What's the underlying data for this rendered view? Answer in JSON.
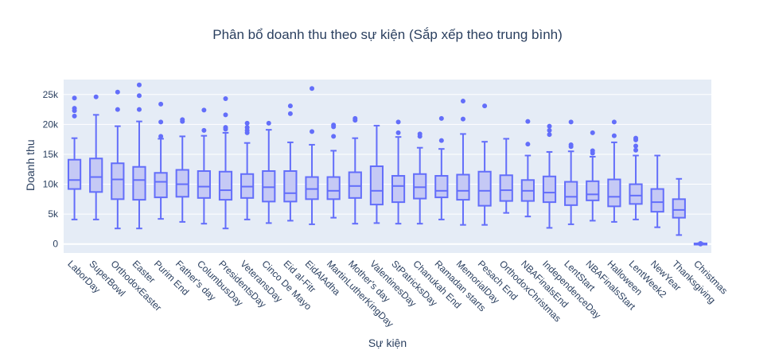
{
  "chart_data": {
    "type": "box",
    "title": "Phân bổ doanh thu theo sự kiện (Sắp xếp theo trung bình)",
    "xlabel": "Sự kiện",
    "ylabel": "Doanh thu",
    "ylim": [
      -1500,
      27500
    ],
    "yticks": [
      0,
      5000,
      10000,
      15000,
      20000,
      25000
    ],
    "ytick_labels": [
      "0",
      "5k",
      "10k",
      "15k",
      "20k",
      "25k"
    ],
    "color": "#636efa",
    "box_fill": "#c5c9f5",
    "plot_bg": "#e5ecf6",
    "grid": true,
    "boxes": [
      {
        "name": "LaborDay",
        "min": 4100,
        "q1": 9200,
        "median": 10700,
        "q3": 14100,
        "max": 17700,
        "outliers": [
          21400,
          22300,
          22700,
          24400
        ]
      },
      {
        "name": "SuperBowl",
        "min": 4100,
        "q1": 8700,
        "median": 11200,
        "q3": 14300,
        "max": 21600,
        "outliers": [
          24600
        ]
      },
      {
        "name": "OrthodoxEaster",
        "min": 2600,
        "q1": 7500,
        "median": 10800,
        "q3": 13500,
        "max": 19700,
        "outliers": [
          22500,
          25400
        ]
      },
      {
        "name": "Easter",
        "min": 2600,
        "q1": 7400,
        "median": 10700,
        "q3": 12900,
        "max": 20500,
        "outliers": [
          22500,
          24800,
          26600
        ]
      },
      {
        "name": "Purim End",
        "min": 4200,
        "q1": 7800,
        "median": 10400,
        "q3": 11900,
        "max": 17600,
        "outliers": [
          18000,
          20400,
          23400
        ]
      },
      {
        "name": "Father's day",
        "min": 3700,
        "q1": 7900,
        "median": 10000,
        "q3": 12400,
        "max": 18000,
        "outliers": [
          20500,
          20800
        ]
      },
      {
        "name": "ColumbusDay",
        "min": 3400,
        "q1": 7700,
        "median": 9600,
        "q3": 12200,
        "max": 18100,
        "outliers": [
          19000,
          22400
        ]
      },
      {
        "name": "PresidentsDay",
        "min": 2600,
        "q1": 7400,
        "median": 9000,
        "q3": 12100,
        "max": 18600,
        "outliers": [
          19200,
          19500,
          21600,
          24300
        ]
      },
      {
        "name": "VeteransDay",
        "min": 4100,
        "q1": 7700,
        "median": 9600,
        "q3": 11700,
        "max": 16900,
        "outliers": [
          18600,
          19000,
          19500,
          20200
        ]
      },
      {
        "name": "Cinco De Mayo",
        "min": 3500,
        "q1": 7100,
        "median": 9500,
        "q3": 12200,
        "max": 19100,
        "outliers": [
          20200
        ]
      },
      {
        "name": "Eid al-Fitr",
        "min": 3900,
        "q1": 7100,
        "median": 8500,
        "q3": 12200,
        "max": 17000,
        "outliers": [
          21800,
          23100
        ]
      },
      {
        "name": "EidAlAdha",
        "min": 3300,
        "q1": 7500,
        "median": 9200,
        "q3": 11200,
        "max": 16600,
        "outliers": [
          18800,
          26000
        ]
      },
      {
        "name": "MartinLutherKingDay",
        "min": 4400,
        "q1": 7500,
        "median": 8900,
        "q3": 11200,
        "max": 15600,
        "outliers": [
          18000,
          19600,
          19900
        ]
      },
      {
        "name": "Mother's day",
        "min": 3400,
        "q1": 7700,
        "median": 9700,
        "q3": 12000,
        "max": 17700,
        "outliers": [
          20700,
          21000
        ]
      },
      {
        "name": "ValentinesDay",
        "min": 3500,
        "q1": 6600,
        "median": 8900,
        "q3": 13000,
        "max": 19800,
        "outliers": []
      },
      {
        "name": "StPatricksDay",
        "min": 3400,
        "q1": 7000,
        "median": 9700,
        "q3": 11400,
        "max": 17900,
        "outliers": [
          18600,
          20400
        ]
      },
      {
        "name": "Chanukah End",
        "min": 3400,
        "q1": 7600,
        "median": 9500,
        "q3": 11700,
        "max": 16100,
        "outliers": [
          18000,
          18400
        ]
      },
      {
        "name": "Ramadan starts",
        "min": 4100,
        "q1": 7800,
        "median": 8900,
        "q3": 11400,
        "max": 15900,
        "outliers": [
          17300,
          21000
        ]
      },
      {
        "name": "MemorialDay",
        "min": 3200,
        "q1": 7400,
        "median": 8900,
        "q3": 11600,
        "max": 18400,
        "outliers": [
          20900,
          23900
        ]
      },
      {
        "name": "Pesach End",
        "min": 3200,
        "q1": 6400,
        "median": 8900,
        "q3": 12100,
        "max": 17100,
        "outliers": [
          23100
        ]
      },
      {
        "name": "OrthodoxChristmas",
        "min": 5200,
        "q1": 7200,
        "median": 9000,
        "q3": 11500,
        "max": 17600,
        "outliers": []
      },
      {
        "name": "NBAFinalsEnd",
        "min": 4600,
        "q1": 7200,
        "median": 8900,
        "q3": 10700,
        "max": 14800,
        "outliers": [
          16700,
          20500
        ]
      },
      {
        "name": "IndependenceDay",
        "min": 2700,
        "q1": 7000,
        "median": 8600,
        "q3": 11300,
        "max": 15400,
        "outliers": [
          18300,
          19000,
          19700
        ]
      },
      {
        "name": "LentStart",
        "min": 3300,
        "q1": 6500,
        "median": 7900,
        "q3": 10400,
        "max": 15500,
        "outliers": [
          16300,
          16600,
          20400
        ]
      },
      {
        "name": "NBAFinalsStart",
        "min": 3900,
        "q1": 7300,
        "median": 8300,
        "q3": 10500,
        "max": 14600,
        "outliers": [
          15200,
          15600,
          18600
        ]
      },
      {
        "name": "Halloween",
        "min": 3700,
        "q1": 6300,
        "median": 7900,
        "q3": 10800,
        "max": 17000,
        "outliers": [
          18100,
          20400
        ]
      },
      {
        "name": "LentWeek2",
        "min": 4100,
        "q1": 6700,
        "median": 8100,
        "q3": 10000,
        "max": 14800,
        "outliers": [
          15700,
          16400,
          17400,
          17700
        ]
      },
      {
        "name": "NewYear",
        "min": 2800,
        "q1": 5400,
        "median": 7000,
        "q3": 9200,
        "max": 14800,
        "outliers": []
      },
      {
        "name": "Thanksgiving",
        "min": 1500,
        "q1": 4400,
        "median": 5700,
        "q3": 7500,
        "max": 10900,
        "outliers": []
      },
      {
        "name": "Christmas",
        "min": 0,
        "q1": 0,
        "median": 50,
        "q3": 100,
        "max": 150,
        "outliers": [
          0,
          100
        ]
      }
    ]
  }
}
